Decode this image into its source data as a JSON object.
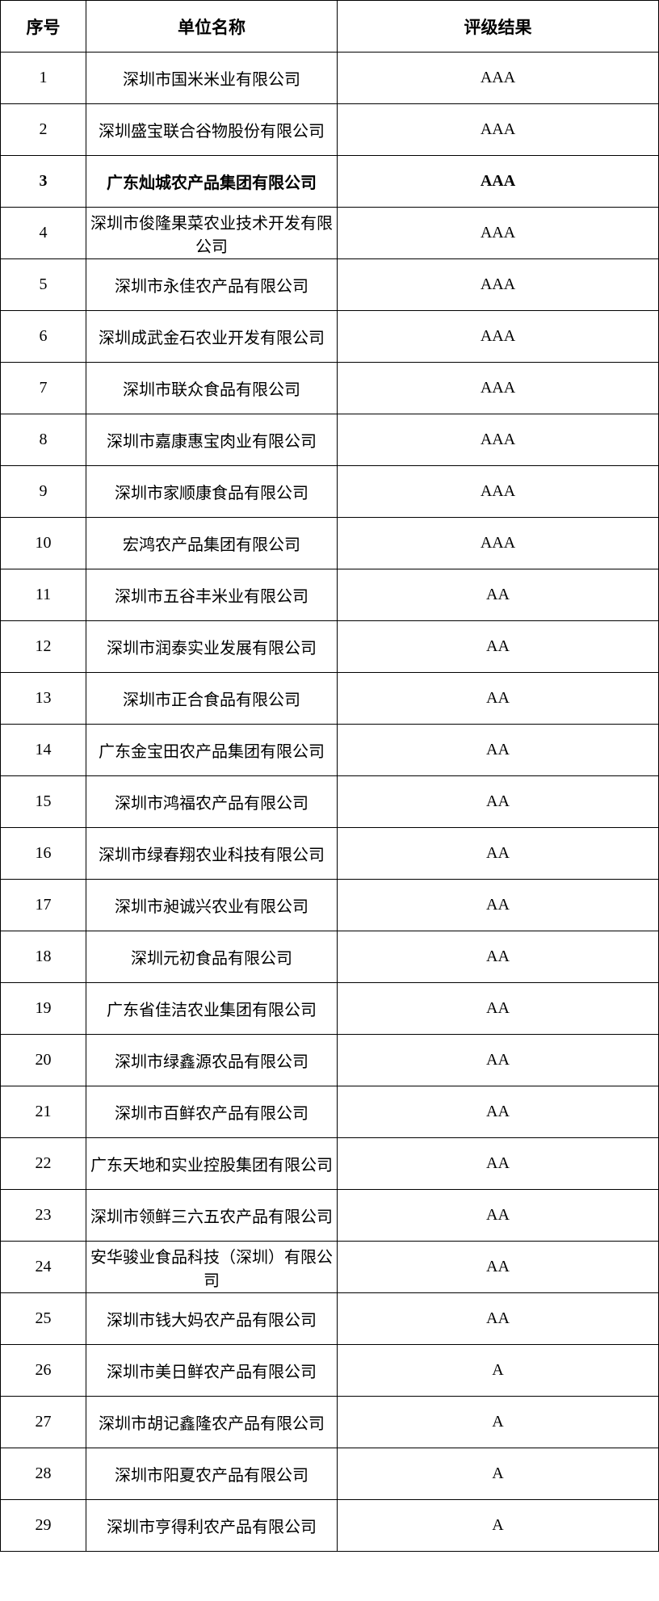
{
  "table": {
    "headers": [
      "序号",
      "单位名称",
      "评级结果"
    ],
    "rows": [
      {
        "no": "1",
        "name": "深圳市国米米业有限公司",
        "rating": "AAA"
      },
      {
        "no": "2",
        "name": "深圳盛宝联合谷物股份有限公司",
        "rating": "AAA"
      },
      {
        "no": "3",
        "name": "广东灿城农产品集团有限公司",
        "rating": "AAA",
        "bold": true
      },
      {
        "no": "4",
        "name": "深圳市俊隆果菜农业技术开发有限公司",
        "rating": "AAA"
      },
      {
        "no": "5",
        "name": "深圳市永佳农产品有限公司",
        "rating": "AAA"
      },
      {
        "no": "6",
        "name": "深圳成武金石农业开发有限公司",
        "rating": "AAA"
      },
      {
        "no": "7",
        "name": "深圳市联众食品有限公司",
        "rating": "AAA"
      },
      {
        "no": "8",
        "name": "深圳市嘉康惠宝肉业有限公司",
        "rating": "AAA"
      },
      {
        "no": "9",
        "name": "深圳市家顺康食品有限公司",
        "rating": "AAA"
      },
      {
        "no": "10",
        "name": "宏鸿农产品集团有限公司",
        "rating": "AAA"
      },
      {
        "no": "11",
        "name": "深圳市五谷丰米业有限公司",
        "rating": "AA"
      },
      {
        "no": "12",
        "name": "深圳市润泰实业发展有限公司",
        "rating": "AA"
      },
      {
        "no": "13",
        "name": "深圳市正合食品有限公司",
        "rating": "AA"
      },
      {
        "no": "14",
        "name": "广东金宝田农产品集团有限公司",
        "rating": "AA"
      },
      {
        "no": "15",
        "name": "深圳市鸿福农产品有限公司",
        "rating": "AA"
      },
      {
        "no": "16",
        "name": "深圳市绿春翔农业科技有限公司",
        "rating": "AA"
      },
      {
        "no": "17",
        "name": "深圳市昶诚兴农业有限公司",
        "rating": "AA"
      },
      {
        "no": "18",
        "name": "深圳元初食品有限公司",
        "rating": "AA"
      },
      {
        "no": "19",
        "name": "广东省佳洁农业集团有限公司",
        "rating": "AA"
      },
      {
        "no": "20",
        "name": "深圳市绿鑫源农品有限公司",
        "rating": "AA"
      },
      {
        "no": "21",
        "name": "深圳市百鲜农产品有限公司",
        "rating": "AA"
      },
      {
        "no": "22",
        "name": "广东天地和实业控股集团有限公司",
        "rating": "AA"
      },
      {
        "no": "23",
        "name": "深圳市领鲜三六五农产品有限公司",
        "rating": "AA"
      },
      {
        "no": "24",
        "name": "安华骏业食品科技（深圳）有限公司",
        "rating": "AA"
      },
      {
        "no": "25",
        "name": "深圳市钱大妈农产品有限公司",
        "rating": "AA"
      },
      {
        "no": "26",
        "name": "深圳市美日鲜农产品有限公司",
        "rating": "A"
      },
      {
        "no": "27",
        "name": "深圳市胡记鑫隆农产品有限公司",
        "rating": "A"
      },
      {
        "no": "28",
        "name": "深圳市阳夏农产品有限公司",
        "rating": "A"
      },
      {
        "no": "29",
        "name": "深圳市亨得利农产品有限公司",
        "rating": "A"
      }
    ]
  }
}
